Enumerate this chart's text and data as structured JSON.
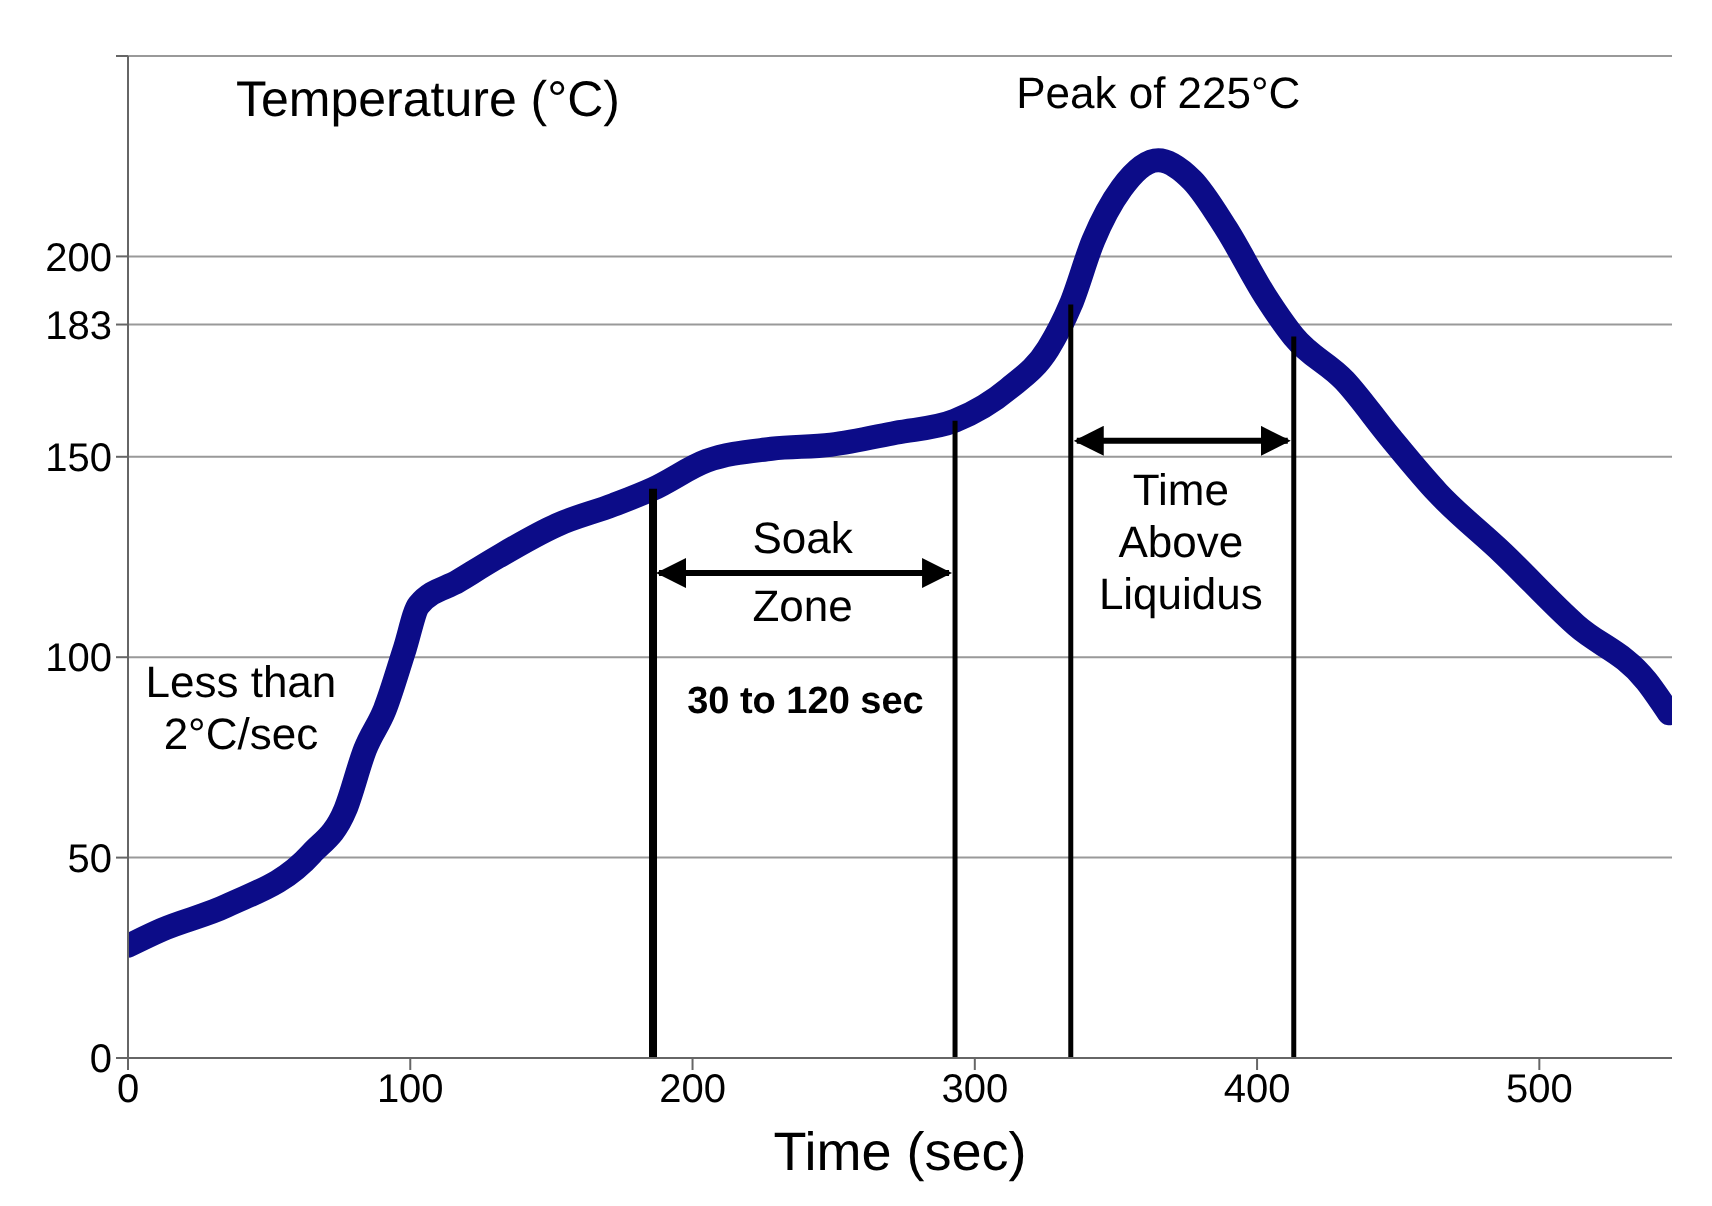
{
  "chart_data": {
    "type": "line",
    "xlabel": "Time (sec)",
    "ylabel": "Temperature (°C)",
    "series": [
      {
        "color": "#0c0c88",
        "x": [
          0,
          12,
          35,
          65,
          77,
          84,
          91,
          98,
          103,
          117,
          131,
          152,
          172,
          186,
          205,
          228,
          249,
          272,
          293,
          312,
          326,
          334,
          342,
          352,
          365,
          377,
          389,
          403,
          413,
          431,
          447,
          464,
          487,
          513,
          538,
          546
        ],
        "values": [
          28,
          32,
          38,
          51,
          62,
          77,
          87,
          102,
          113,
          119,
          125,
          133,
          138,
          142,
          149,
          152,
          153,
          156,
          159,
          167,
          177,
          188,
          204,
          217,
          224,
          219,
          207,
          190,
          180,
          169,
          155,
          141,
          126,
          108,
          94,
          86
        ]
      }
    ],
    "xlim": [
      0,
      547
    ],
    "xticks": [
      0,
      100,
      200,
      300,
      400,
      500
    ],
    "ylim": [
      0,
      250
    ],
    "yticks": [
      0,
      50,
      100,
      150,
      183,
      200,
      {
        "value": 250,
        "label": null
      }
    ],
    "grid": "y",
    "marker": "none",
    "line_style": "solid",
    "ref_lines": [
      {
        "axis": "x",
        "value": 186,
        "color": "#000000"
      },
      {
        "axis": "x",
        "value": 293,
        "color": "#000000"
      },
      {
        "axis": "x",
        "value": 334,
        "color": "#000000"
      },
      {
        "axis": "x",
        "value": 413,
        "color": "#000000"
      }
    ],
    "annotations": [
      {
        "text": "Peak of 225°C",
        "x": 365,
        "y": 225
      },
      "Soak Zone",
      "30 to 120 sec",
      "Time Above Liquidus",
      "Less than 2°C/sec"
    ]
  }
}
